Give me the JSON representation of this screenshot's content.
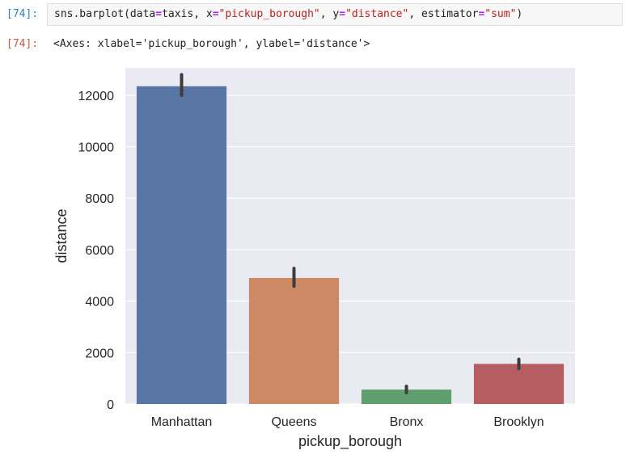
{
  "notebook": {
    "input_prompt": "[74]:",
    "output_prompt": "[74]:",
    "code": {
      "func": "sns.barplot",
      "open": "(",
      "arg1_name": "data",
      "arg1_value": "taxis",
      "arg2_name": "x",
      "arg2_value": "\"pickup_borough\"",
      "arg3_name": "y",
      "arg3_value": "\"distance\"",
      "arg4_name": "estimator",
      "arg4_value": "\"sum\"",
      "close": ")"
    },
    "output_text": "<Axes: xlabel='pickup_borough', ylabel='distance'>"
  },
  "chart_data": {
    "type": "bar",
    "categories": [
      "Manhattan",
      "Queens",
      "Bronx",
      "Brooklyn"
    ],
    "values": [
      12350,
      4900,
      560,
      1560
    ],
    "error_low": [
      12000,
      4580,
      440,
      1380
    ],
    "error_high": [
      12800,
      5270,
      690,
      1740
    ],
    "colors": [
      "#5975a4",
      "#cc8963",
      "#5f9e6e",
      "#b55d60"
    ],
    "xlabel": "pickup_borough",
    "ylabel": "distance",
    "ylim": [
      0,
      13000
    ],
    "yticks": [
      0,
      2000,
      4000,
      6000,
      8000,
      10000,
      12000
    ],
    "ytick_labels": [
      "0",
      "2000",
      "4000",
      "6000",
      "8000",
      "10000",
      "12000"
    ],
    "grid": true,
    "plot_background": "#eaeaf2"
  }
}
